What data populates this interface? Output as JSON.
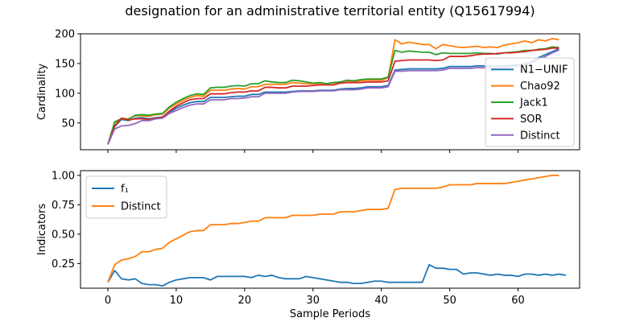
{
  "figure": {
    "title": "designation for an administrative territorial entity (Q15617994)"
  },
  "chart_data": [
    {
      "type": "line",
      "ylabel": "Cardinality",
      "xlabel": "",
      "xlim": [
        -4,
        69
      ],
      "ylim": [
        5,
        200
      ],
      "x_ticks": [
        0,
        10,
        20,
        30,
        40,
        50,
        60
      ],
      "y_ticks": [
        50,
        100,
        150,
        200
      ],
      "legend_position": "right",
      "series": [
        {
          "name": "N1−UNIF",
          "color": "#1f77b4",
          "values": [
            14,
            44,
            56,
            54,
            58,
            59,
            57,
            59,
            60,
            68,
            75,
            80,
            84,
            86,
            86,
            93,
            93,
            93,
            94,
            95,
            95,
            98,
            98,
            102,
            102,
            102,
            102,
            103,
            104,
            104,
            104,
            105,
            105,
            105,
            107,
            108,
            108,
            109,
            111,
            111,
            111,
            113,
            139,
            140,
            141,
            141,
            141,
            141,
            141,
            142,
            145,
            145,
            145,
            145,
            146,
            146,
            146,
            146,
            146,
            147,
            148,
            150,
            153,
            160,
            165,
            170,
            175
          ]
        },
        {
          "name": "Chao92",
          "color": "#ff7f0e",
          "values": [
            14,
            50,
            58,
            57,
            62,
            62,
            61,
            64,
            65,
            75,
            82,
            88,
            93,
            96,
            95,
            105,
            105,
            105,
            107,
            108,
            107,
            111,
            111,
            115,
            115,
            115,
            115,
            118,
            117,
            116,
            116,
            116,
            116,
            117,
            119,
            121,
            120,
            121,
            122,
            122,
            122,
            126,
            190,
            183,
            186,
            184,
            182,
            182,
            175,
            182,
            180,
            178,
            177,
            178,
            179,
            177,
            178,
            177,
            181,
            183,
            185,
            188,
            185,
            190,
            188,
            192,
            190
          ]
        },
        {
          "name": "Jack1",
          "color": "#2ca02c",
          "values": [
            14,
            52,
            57,
            56,
            63,
            64,
            63,
            65,
            66,
            77,
            85,
            91,
            96,
            99,
            98,
            109,
            110,
            110,
            112,
            113,
            112,
            116,
            116,
            121,
            119,
            118,
            118,
            122,
            121,
            119,
            117,
            118,
            116,
            118,
            119,
            122,
            121,
            123,
            124,
            124,
            124,
            127,
            172,
            169,
            171,
            170,
            169,
            169,
            165,
            168,
            167,
            167,
            167,
            167,
            168,
            167,
            167,
            166,
            168,
            169,
            170,
            172,
            172,
            174,
            175,
            178,
            177
          ]
        },
        {
          "name": "SOR",
          "color": "#d62728",
          "values": [
            14,
            45,
            58,
            55,
            57,
            57,
            56,
            58,
            60,
            70,
            78,
            84,
            89,
            91,
            91,
            99,
            99,
            99,
            101,
            102,
            102,
            104,
            104,
            110,
            110,
            109,
            109,
            112,
            112,
            112,
            113,
            114,
            114,
            114,
            117,
            118,
            118,
            118,
            119,
            119,
            119,
            121,
            154,
            155,
            156,
            156,
            156,
            156,
            155,
            156,
            162,
            162,
            162,
            163,
            165,
            166,
            166,
            167,
            168,
            168,
            169,
            170,
            172,
            173,
            174,
            176,
            176
          ]
        },
        {
          "name": "Distinct",
          "color": "#9467bd",
          "values": [
            14,
            40,
            45,
            46,
            49,
            54,
            54,
            57,
            58,
            66,
            71,
            76,
            80,
            82,
            82,
            89,
            89,
            89,
            91,
            91,
            92,
            94,
            94,
            100,
            100,
            100,
            100,
            102,
            103,
            103,
            103,
            104,
            104,
            104,
            106,
            106,
            106,
            107,
            109,
            109,
            109,
            111,
            137,
            137,
            138,
            138,
            138,
            138,
            138,
            139,
            142,
            142,
            142,
            142,
            143,
            143,
            143,
            143,
            144,
            145,
            146,
            148,
            151,
            157,
            162,
            168,
            173
          ]
        }
      ]
    },
    {
      "type": "line",
      "ylabel": "Indicators",
      "xlabel": "Sample Periods",
      "xlim": [
        -4,
        69
      ],
      "ylim": [
        0.04,
        1.04
      ],
      "x_ticks": [
        0,
        10,
        20,
        30,
        40,
        50,
        60
      ],
      "y_ticks": [
        "0.25",
        "0.50",
        "0.75",
        "1.00"
      ],
      "legend_position": "upper-left",
      "series": [
        {
          "name": "f₁",
          "color": "#1f77b4",
          "values": [
            0.09,
            0.19,
            0.12,
            0.11,
            0.12,
            0.08,
            0.07,
            0.07,
            0.06,
            0.09,
            0.11,
            0.12,
            0.13,
            0.13,
            0.13,
            0.11,
            0.14,
            0.14,
            0.14,
            0.14,
            0.14,
            0.13,
            0.15,
            0.14,
            0.15,
            0.13,
            0.12,
            0.12,
            0.12,
            0.14,
            0.13,
            0.12,
            0.11,
            0.1,
            0.09,
            0.09,
            0.08,
            0.08,
            0.09,
            0.1,
            0.1,
            0.09,
            0.09,
            0.09,
            0.09,
            0.09,
            0.09,
            0.24,
            0.21,
            0.21,
            0.2,
            0.2,
            0.16,
            0.17,
            0.17,
            0.16,
            0.15,
            0.16,
            0.15,
            0.15,
            0.14,
            0.16,
            0.16,
            0.15,
            0.16,
            0.15,
            0.16,
            0.15
          ]
        },
        {
          "name": "Distinct",
          "color": "#ff7f0e",
          "values": [
            0.09,
            0.24,
            0.28,
            0.29,
            0.31,
            0.35,
            0.35,
            0.37,
            0.38,
            0.43,
            0.46,
            0.49,
            0.52,
            0.53,
            0.53,
            0.58,
            0.58,
            0.58,
            0.59,
            0.59,
            0.6,
            0.61,
            0.61,
            0.64,
            0.64,
            0.64,
            0.64,
            0.66,
            0.66,
            0.66,
            0.66,
            0.67,
            0.67,
            0.67,
            0.69,
            0.69,
            0.69,
            0.7,
            0.71,
            0.71,
            0.71,
            0.72,
            0.88,
            0.89,
            0.89,
            0.89,
            0.89,
            0.89,
            0.89,
            0.9,
            0.92,
            0.92,
            0.92,
            0.92,
            0.93,
            0.93,
            0.93,
            0.93,
            0.93,
            0.94,
            0.95,
            0.96,
            0.97,
            0.98,
            0.99,
            1.0,
            1.0
          ]
        }
      ]
    }
  ]
}
